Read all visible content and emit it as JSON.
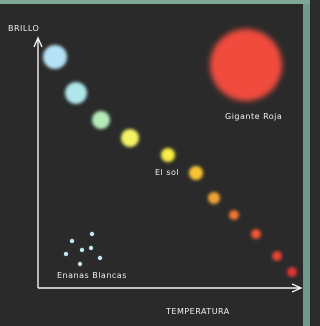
{
  "axes": {
    "y_label": "BRILLO",
    "x_label": "TEMPERATURA"
  },
  "annotations": {
    "giant": "Gigante Roja",
    "sun": "El sol",
    "white_dwarfs": "Enanas Blancas"
  }
}
